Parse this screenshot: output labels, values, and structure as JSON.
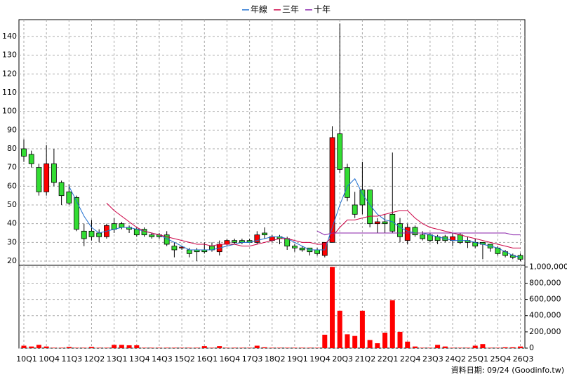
{
  "chart_data": [
    {
      "type": "candlestick",
      "categories": [
        "10Q1",
        null,
        null,
        "10Q4",
        null,
        null,
        "11Q3",
        null,
        null,
        "12Q2",
        null,
        null,
        "13Q1",
        null,
        null,
        "13Q4",
        null,
        null,
        "14Q3",
        null,
        null,
        "15Q2",
        null,
        null,
        "16Q1",
        null,
        null,
        "16Q4",
        null,
        null,
        "17Q3",
        null,
        null,
        "18Q2",
        null,
        null,
        "19Q1",
        null,
        null,
        "19Q4",
        null,
        null,
        "20Q3",
        null,
        null,
        "21Q2",
        null,
        null,
        "22Q1",
        null,
        null,
        "22Q4",
        null,
        null,
        "23Q3",
        null,
        null,
        "24Q2",
        null,
        null,
        "25Q1",
        null,
        null,
        "25Q4",
        null,
        null,
        "26Q3"
      ],
      "open": [
        80,
        77,
        70,
        57,
        72,
        62,
        57,
        54,
        36,
        36,
        35,
        33,
        40,
        40,
        38,
        37,
        37,
        34,
        34,
        34,
        28,
        27,
        26,
        26,
        26,
        28,
        25,
        29,
        31,
        31,
        31,
        30,
        35,
        31,
        33,
        32,
        28,
        27,
        27,
        26,
        23,
        30,
        88,
        70,
        50,
        58,
        58,
        40,
        41,
        45,
        40,
        31,
        38,
        34,
        34,
        33,
        33,
        31,
        34,
        31,
        30,
        30,
        29,
        27,
        25,
        23,
        23
      ],
      "high": [
        85,
        79,
        72,
        82,
        80,
        63,
        61,
        55,
        40,
        42,
        37,
        40,
        43,
        41,
        39,
        38,
        38,
        35,
        35,
        36,
        30,
        28,
        27,
        27,
        30,
        30,
        31,
        32,
        32,
        32,
        32,
        36,
        38,
        34,
        34,
        33,
        29,
        28,
        27,
        27,
        30,
        92,
        147,
        72,
        57,
        73,
        58,
        43,
        45,
        78,
        43,
        40,
        39,
        36,
        35,
        34,
        34,
        35,
        35,
        33,
        32,
        30,
        29,
        28,
        26,
        24,
        24
      ],
      "low": [
        73,
        70,
        55,
        55,
        60,
        50,
        50,
        36,
        28,
        31,
        30,
        32,
        35,
        37,
        35,
        33,
        33,
        32,
        32,
        28,
        22,
        26,
        22,
        20,
        24,
        25,
        23,
        28,
        29,
        29,
        30,
        29,
        32,
        30,
        29,
        26,
        25,
        25,
        23,
        23,
        22,
        30,
        67,
        52,
        43,
        45,
        38,
        35,
        35,
        35,
        30,
        29,
        33,
        31,
        30,
        29,
        30,
        28,
        29,
        27,
        27,
        21,
        25,
        23,
        22,
        21,
        20
      ],
      "close": [
        76,
        72,
        57,
        72,
        62,
        55,
        51,
        37,
        32,
        33,
        33,
        39,
        37,
        38,
        37,
        34,
        34,
        33,
        33,
        29,
        26,
        27.5,
        24,
        25,
        25,
        26,
        29,
        31,
        30,
        30,
        30,
        34,
        34,
        33,
        32,
        28,
        27,
        26,
        25,
        24,
        30,
        86,
        69,
        54,
        45,
        50,
        40,
        41,
        40,
        36,
        33,
        38,
        34,
        32,
        31,
        31,
        31,
        33,
        30,
        30,
        28,
        29,
        27,
        24,
        23,
        22,
        21
      ],
      "up_color": "#ff0000",
      "down_color": "#33dd33",
      "series": [
        {
          "name": "年線",
          "color": "#1f6fd0",
          "values": [
            null,
            null,
            null,
            null,
            null,
            null,
            60,
            52,
            44,
            38,
            35,
            36,
            37,
            38,
            38,
            37,
            36,
            35,
            34,
            32,
            30,
            28,
            26,
            26,
            26,
            26,
            27,
            28,
            29,
            30,
            30,
            31,
            32,
            33,
            33,
            32,
            30,
            28,
            26,
            26,
            26,
            38,
            50,
            60,
            64,
            56,
            50,
            45,
            42,
            41,
            38,
            36,
            35,
            35,
            34,
            33,
            32,
            31,
            31,
            31,
            30,
            29,
            28,
            27,
            25,
            23,
            22
          ]
        },
        {
          "name": "三年",
          "color": "#cc0044",
          "values": [
            null,
            null,
            null,
            null,
            null,
            null,
            null,
            null,
            null,
            null,
            null,
            51,
            47,
            44,
            41,
            38,
            36,
            35,
            34,
            33,
            32,
            31,
            30,
            29,
            29,
            28,
            29,
            29,
            29,
            28,
            28,
            29,
            30,
            31,
            32,
            32,
            31,
            30,
            30,
            29,
            29,
            33,
            38,
            42,
            42,
            43,
            44,
            44,
            45,
            46,
            47,
            47,
            43,
            40,
            38,
            37,
            36,
            35,
            34,
            33,
            32,
            31,
            30,
            29,
            28,
            27,
            27
          ]
        },
        {
          "name": "十年",
          "color": "#8822aa",
          "values": [
            null,
            null,
            null,
            null,
            null,
            null,
            null,
            null,
            null,
            null,
            null,
            null,
            null,
            null,
            null,
            null,
            null,
            null,
            null,
            null,
            null,
            null,
            null,
            null,
            null,
            null,
            null,
            null,
            null,
            null,
            null,
            null,
            null,
            null,
            null,
            null,
            null,
            null,
            null,
            36,
            34,
            35,
            35,
            35,
            35,
            35,
            35,
            35,
            35,
            35,
            35,
            35,
            35,
            35,
            35,
            35,
            35,
            35,
            35,
            35,
            35,
            35,
            35,
            35,
            35,
            34,
            34
          ]
        }
      ],
      "ylim": [
        17,
        149
      ],
      "yticks": [
        20,
        30,
        40,
        50,
        60,
        70,
        80,
        90,
        100,
        110,
        120,
        130,
        140
      ],
      "grid": true
    },
    {
      "type": "bar",
      "color": "#ff0000",
      "values": [
        30000,
        20000,
        40000,
        20000,
        5000,
        5000,
        15000,
        5000,
        5000,
        15000,
        5000,
        5000,
        40000,
        40000,
        35000,
        35000,
        5000,
        5000,
        5000,
        5000,
        5000,
        5000,
        5000,
        5000,
        25000,
        5000,
        25000,
        5000,
        5000,
        5000,
        5000,
        30000,
        10000,
        5000,
        5000,
        5000,
        5000,
        5000,
        5000,
        5000,
        165000,
        1000000,
        460000,
        170000,
        150000,
        460000,
        100000,
        60000,
        190000,
        590000,
        200000,
        80000,
        20000,
        5000,
        5000,
        40000,
        20000,
        5000,
        5000,
        5000,
        30000,
        50000,
        5000,
        5000,
        10000,
        10000,
        20000
      ],
      "y2lim": [
        0,
        1020000
      ],
      "y2ticks": [
        0,
        {
          "value": 200000,
          "label": "200,000"
        },
        {
          "value": 400000,
          "label": "400,000"
        },
        {
          "value": 600000,
          "label": "600,000"
        },
        {
          "value": 800000,
          "label": "800,000"
        },
        {
          "value": 1000000,
          "label": "1,000,000"
        }
      ],
      "grid": true
    }
  ],
  "footer": "資料日期: 09/24 (Goodinfo.tw)"
}
